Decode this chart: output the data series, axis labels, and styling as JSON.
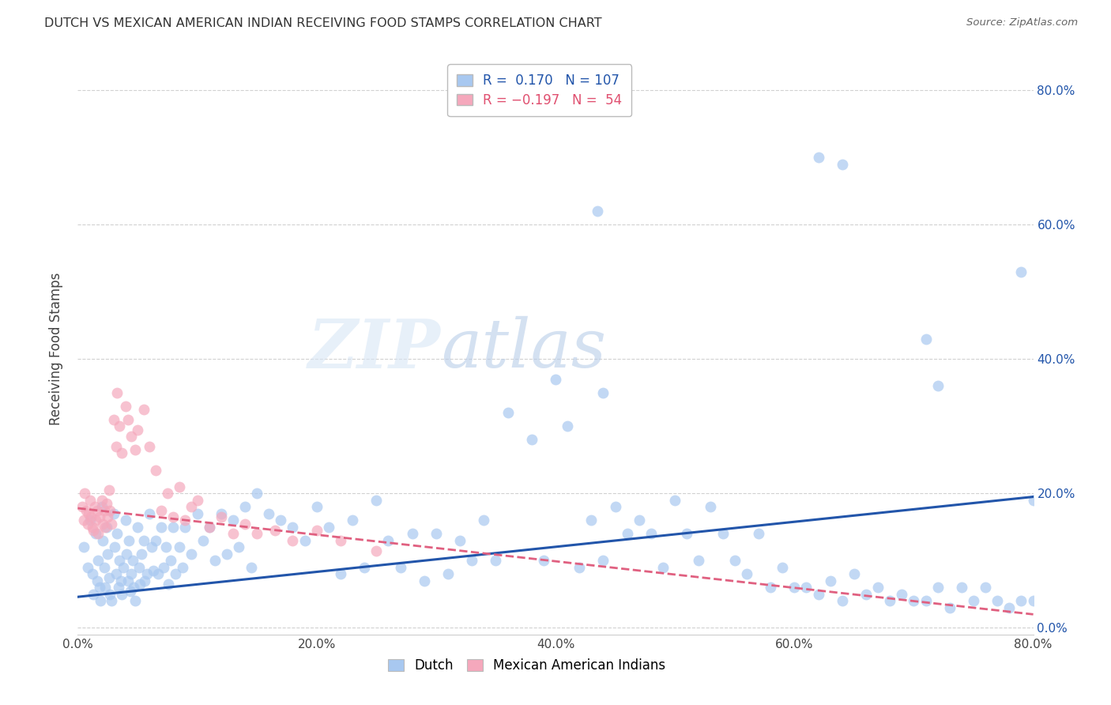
{
  "title": "DUTCH VS MEXICAN AMERICAN INDIAN RECEIVING FOOD STAMPS CORRELATION CHART",
  "source": "Source: ZipAtlas.com",
  "ylabel": "Receiving Food Stamps",
  "xlim": [
    0,
    0.8
  ],
  "ylim": [
    -0.01,
    0.84
  ],
  "x_ticks": [
    0.0,
    0.2,
    0.4,
    0.6,
    0.8
  ],
  "y_ticks": [
    0.0,
    0.2,
    0.4,
    0.6,
    0.8
  ],
  "x_tick_labels": [
    "0.0%",
    "20.0%",
    "40.0%",
    "60.0%",
    "80.0%"
  ],
  "y_tick_labels": [
    "0.0%",
    "20.0%",
    "40.0%",
    "60.0%",
    "80.0%"
  ],
  "dutch_color": "#A8C8F0",
  "mexican_color": "#F5A8BC",
  "dutch_line_color": "#2255AA",
  "mexican_line_color": "#E06080",
  "watermark_zip": "ZIP",
  "watermark_atlas": "atlas",
  "legend": {
    "dutch_R": "0.170",
    "dutch_N": "107",
    "mexican_R": "-0.197",
    "mexican_N": "54"
  },
  "dutch_trend_x": [
    0.0,
    0.8
  ],
  "dutch_trend_y": [
    0.046,
    0.195
  ],
  "mexican_trend_x": [
    0.0,
    0.8
  ],
  "mexican_trend_y": [
    0.178,
    0.02
  ],
  "dutch_x": [
    0.005,
    0.008,
    0.01,
    0.012,
    0.013,
    0.015,
    0.016,
    0.017,
    0.018,
    0.019,
    0.02,
    0.021,
    0.022,
    0.023,
    0.024,
    0.025,
    0.026,
    0.027,
    0.028,
    0.03,
    0.031,
    0.032,
    0.033,
    0.034,
    0.035,
    0.036,
    0.037,
    0.038,
    0.04,
    0.041,
    0.042,
    0.043,
    0.044,
    0.045,
    0.046,
    0.047,
    0.048,
    0.05,
    0.051,
    0.052,
    0.053,
    0.055,
    0.056,
    0.058,
    0.06,
    0.062,
    0.063,
    0.065,
    0.067,
    0.07,
    0.072,
    0.074,
    0.076,
    0.078,
    0.08,
    0.082,
    0.085,
    0.088,
    0.09,
    0.095,
    0.1,
    0.105,
    0.11,
    0.115,
    0.12,
    0.125,
    0.13,
    0.135,
    0.14,
    0.145,
    0.15,
    0.16,
    0.17,
    0.18,
    0.19,
    0.2,
    0.21,
    0.22,
    0.23,
    0.24,
    0.25,
    0.26,
    0.27,
    0.28,
    0.29,
    0.3,
    0.31,
    0.32,
    0.33,
    0.34,
    0.35,
    0.36,
    0.38,
    0.39,
    0.4,
    0.41,
    0.42,
    0.43,
    0.44,
    0.45,
    0.46,
    0.47,
    0.48,
    0.49,
    0.5,
    0.51,
    0.52
  ],
  "dutch_y": [
    0.12,
    0.09,
    0.16,
    0.08,
    0.05,
    0.14,
    0.07,
    0.1,
    0.06,
    0.04,
    0.18,
    0.13,
    0.09,
    0.06,
    0.15,
    0.11,
    0.075,
    0.05,
    0.04,
    0.17,
    0.12,
    0.08,
    0.14,
    0.06,
    0.1,
    0.07,
    0.05,
    0.09,
    0.16,
    0.11,
    0.07,
    0.13,
    0.055,
    0.08,
    0.1,
    0.06,
    0.04,
    0.15,
    0.09,
    0.065,
    0.11,
    0.13,
    0.07,
    0.08,
    0.17,
    0.12,
    0.085,
    0.13,
    0.08,
    0.15,
    0.09,
    0.12,
    0.065,
    0.1,
    0.15,
    0.08,
    0.12,
    0.09,
    0.15,
    0.11,
    0.17,
    0.13,
    0.15,
    0.1,
    0.17,
    0.11,
    0.16,
    0.12,
    0.18,
    0.09,
    0.2,
    0.17,
    0.16,
    0.15,
    0.13,
    0.18,
    0.15,
    0.08,
    0.16,
    0.09,
    0.19,
    0.13,
    0.09,
    0.14,
    0.07,
    0.14,
    0.08,
    0.13,
    0.1,
    0.16,
    0.1,
    0.32,
    0.28,
    0.1,
    0.37,
    0.3,
    0.09,
    0.16,
    0.1,
    0.18,
    0.14,
    0.16,
    0.14,
    0.09,
    0.19,
    0.14,
    0.1
  ],
  "dutch_outlier_x": [
    0.435,
    0.44,
    0.62,
    0.64,
    0.71,
    0.72,
    0.79,
    0.8
  ],
  "dutch_outlier_y": [
    0.62,
    0.35,
    0.7,
    0.69,
    0.43,
    0.36,
    0.53,
    0.19
  ],
  "dutch_right_x": [
    0.53,
    0.54,
    0.55,
    0.56,
    0.57,
    0.58,
    0.59,
    0.6,
    0.61,
    0.62,
    0.63,
    0.64,
    0.65,
    0.66,
    0.67,
    0.68,
    0.69,
    0.7,
    0.71,
    0.72,
    0.73,
    0.74,
    0.75,
    0.76,
    0.77,
    0.78,
    0.79,
    0.8
  ],
  "dutch_right_y": [
    0.18,
    0.14,
    0.1,
    0.08,
    0.14,
    0.06,
    0.09,
    0.06,
    0.06,
    0.05,
    0.07,
    0.04,
    0.08,
    0.05,
    0.06,
    0.04,
    0.05,
    0.04,
    0.04,
    0.06,
    0.03,
    0.06,
    0.04,
    0.06,
    0.04,
    0.03,
    0.04,
    0.04
  ],
  "mexican_x": [
    0.004,
    0.005,
    0.006,
    0.007,
    0.008,
    0.009,
    0.01,
    0.011,
    0.012,
    0.013,
    0.014,
    0.015,
    0.016,
    0.017,
    0.018,
    0.02,
    0.021,
    0.022,
    0.023,
    0.024,
    0.025,
    0.026,
    0.027,
    0.028,
    0.03,
    0.032,
    0.033,
    0.035,
    0.037,
    0.04,
    0.042,
    0.045,
    0.048,
    0.05,
    0.055,
    0.06,
    0.065,
    0.07,
    0.075,
    0.08,
    0.085,
    0.09,
    0.095,
    0.1,
    0.11,
    0.12,
    0.13,
    0.14,
    0.15,
    0.165,
    0.18,
    0.2,
    0.22,
    0.25
  ],
  "mexican_y": [
    0.18,
    0.16,
    0.2,
    0.175,
    0.155,
    0.17,
    0.19,
    0.165,
    0.15,
    0.145,
    0.18,
    0.16,
    0.175,
    0.14,
    0.165,
    0.19,
    0.155,
    0.175,
    0.15,
    0.185,
    0.165,
    0.205,
    0.175,
    0.155,
    0.31,
    0.27,
    0.35,
    0.3,
    0.26,
    0.33,
    0.31,
    0.285,
    0.265,
    0.295,
    0.325,
    0.27,
    0.235,
    0.175,
    0.2,
    0.165,
    0.21,
    0.16,
    0.18,
    0.19,
    0.15,
    0.165,
    0.14,
    0.155,
    0.14,
    0.145,
    0.13,
    0.145,
    0.13,
    0.115
  ],
  "background_color": "#FFFFFF",
  "plot_background": "#FFFFFF",
  "grid_color": "#CCCCCC"
}
